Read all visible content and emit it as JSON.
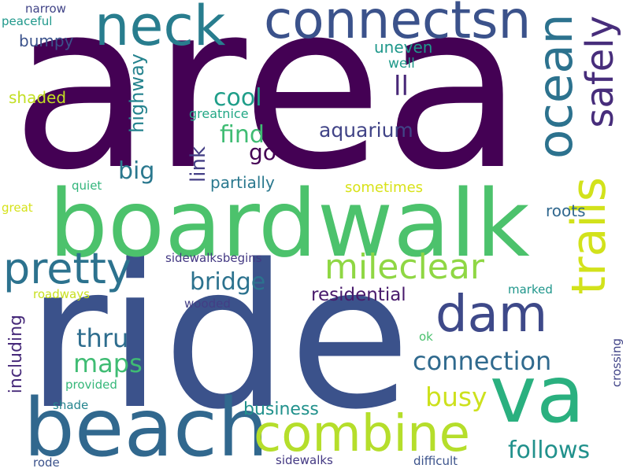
{
  "words": {
    "area": {
      "text": "area",
      "color": "#440154"
    },
    "ride": {
      "text": "ride",
      "color": "#3b528b"
    },
    "boardwalk": {
      "text": "boardwalk",
      "color": "#4cc26c"
    },
    "beach": {
      "text": "beach",
      "color": "#31688e"
    },
    "neck": {
      "text": "neck",
      "color": "#287d8e"
    },
    "connectsn": {
      "text": "connectsn",
      "color": "#3b528b"
    },
    "ocean": {
      "text": "ocean",
      "color": "#2c728e"
    },
    "safely": {
      "text": "safely",
      "color": "#472d7b"
    },
    "trails": {
      "text": "trails",
      "color": "#d2e21b"
    },
    "va": {
      "text": "va",
      "color": "#2ab07f"
    },
    "combine": {
      "text": "combine",
      "color": "#b5de2b"
    },
    "pretty": {
      "text": "pretty",
      "color": "#2c728e"
    },
    "dam": {
      "text": "dam",
      "color": "#3e4989"
    },
    "mileclear": {
      "text": "mileclear",
      "color": "#8fd744"
    },
    "connection": {
      "text": "connection",
      "color": "#306a8e"
    },
    "bridge": {
      "text": "bridge",
      "color": "#2c728e"
    },
    "residential": {
      "text": "residential",
      "color": "#481a6c"
    },
    "maps": {
      "text": "maps",
      "color": "#3fbc73"
    },
    "thru": {
      "text": "thru",
      "color": "#2e6d8e"
    },
    "busy": {
      "text": "busy",
      "color": "#cde11d"
    },
    "follows": {
      "text": "follows",
      "color": "#21918c"
    },
    "cool": {
      "text": "cool",
      "color": "#1f9e89"
    },
    "find": {
      "text": "find",
      "color": "#3fbc73"
    },
    "go": {
      "text": "go",
      "color": "#440154"
    },
    "big": {
      "text": "big",
      "color": "#2a788e"
    },
    "aquarium": {
      "text": "aquarium",
      "color": "#414487"
    },
    "ll": {
      "text": "ll",
      "color": "#482878"
    },
    "highway": {
      "text": "highway",
      "color": "#25838e"
    },
    "link": {
      "text": "link",
      "color": "#433e85"
    },
    "partially": {
      "text": "partially",
      "color": "#2a788e"
    },
    "business": {
      "text": "business",
      "color": "#21918c"
    },
    "including": {
      "text": "including",
      "color": "#472a7a"
    },
    "roots": {
      "text": "roots",
      "color": "#31688e"
    },
    "sometimes": {
      "text": "sometimes",
      "color": "#d8e219"
    },
    "uneven": {
      "text": "uneven",
      "color": "#1f988b"
    },
    "well": {
      "text": "well",
      "color": "#1f9a8a"
    },
    "greatnice": {
      "text": "greatnice",
      "color": "#22a785"
    },
    "shaded": {
      "text": "shaded",
      "color": "#c2df23"
    },
    "bumpy": {
      "text": "bumpy",
      "color": "#3b528b"
    },
    "narrow": {
      "text": "narrow",
      "color": "#414487"
    },
    "peaceful": {
      "text": "peaceful",
      "color": "#1f988b"
    },
    "quiet": {
      "text": "quiet",
      "color": "#31b57b"
    },
    "great": {
      "text": "great",
      "color": "#d5e21a"
    },
    "sidewalksbegins": {
      "text": "sidewalksbegins",
      "color": "#443983"
    },
    "roadways": {
      "text": "roadways",
      "color": "#c8e020"
    },
    "wooded": {
      "text": "wooded",
      "color": "#433e85"
    },
    "marked": {
      "text": "marked",
      "color": "#1f968b"
    },
    "ok": {
      "text": "ok",
      "color": "#4ac16d"
    },
    "provided": {
      "text": "provided",
      "color": "#35b779"
    },
    "shade": {
      "text": "shade",
      "color": "#25858e"
    },
    "crossing": {
      "text": "crossing",
      "color": "#414487"
    },
    "rode": {
      "text": "rode",
      "color": "#3b528b"
    },
    "sidewalks": {
      "text": "sidewalks",
      "color": "#443983"
    },
    "difficult": {
      "text": "difficult",
      "color": "#3b528b"
    }
  }
}
